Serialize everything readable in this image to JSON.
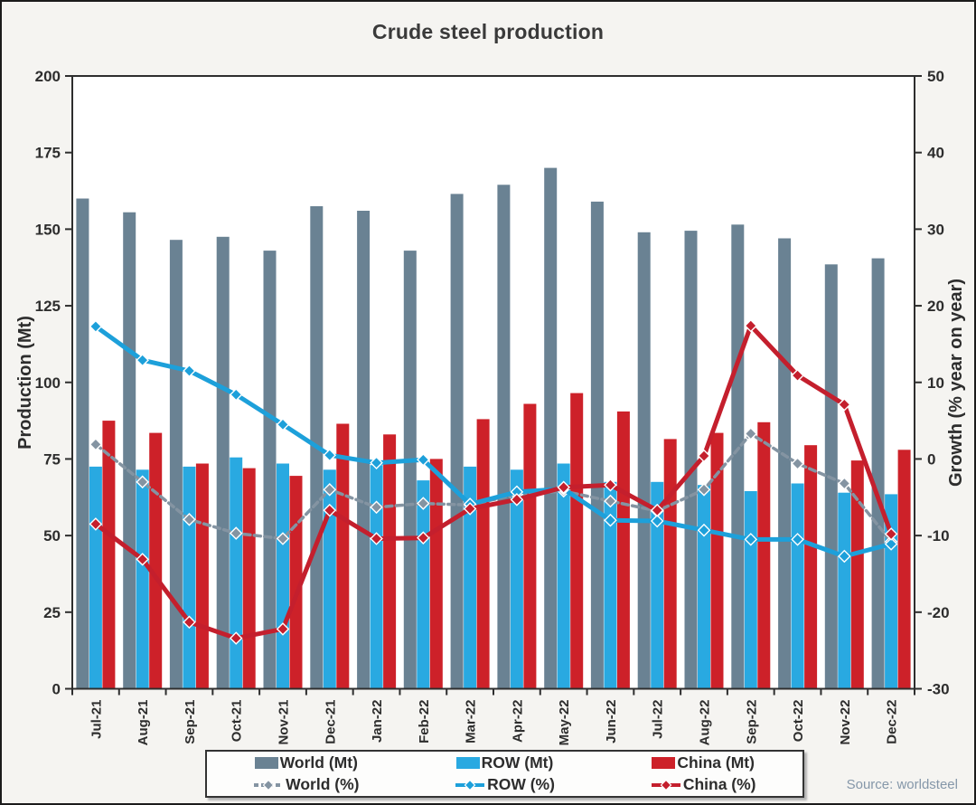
{
  "page": {
    "background": "#f5f4f1",
    "plot_background": "#ffffff",
    "border_color": "#1b1b1b"
  },
  "title": "Crude steel production",
  "source_note": "Source: worldsteel",
  "colors": {
    "world_bar": "#6a8293",
    "row_bar": "#29a9e1",
    "china_bar": "#cd2129",
    "world_line": "#8494a2",
    "row_line": "#1da0da",
    "china_line": "#c41f2d",
    "axis": "#2e2e2e",
    "text": "#2d2d2d",
    "title_text": "#3a3a3a",
    "source_text": "#8597a9"
  },
  "chart_data": {
    "type": "combo-grouped-bar-and-line",
    "title": "Crude steel production",
    "grid": false,
    "legend_position": "bottom",
    "categories": [
      "Jul-21",
      "Aug-21",
      "Sep-21",
      "Oct-21",
      "Nov-21",
      "Dec-21",
      "Jan-22",
      "Feb-22",
      "Mar-22",
      "Apr-22",
      "May-22",
      "Jun-22",
      "Jul-22",
      "Aug-22",
      "Sep-22",
      "Oct-22",
      "Nov-22",
      "Dec-22"
    ],
    "left_axis": {
      "label": "Production (Mt)",
      "min": 0,
      "max": 200,
      "ticks": [
        200,
        175,
        150,
        125,
        100,
        75,
        50,
        25,
        0
      ]
    },
    "right_axis": {
      "label": "Growth (% year on year)",
      "min": -30,
      "max": 50,
      "ticks": [
        50,
        40,
        30,
        20,
        10,
        0,
        -10,
        -20,
        -30
      ]
    },
    "series": [
      {
        "name": "World (Mt)",
        "kind": "bar",
        "axis": "left",
        "color_key": "world_bar",
        "values": [
          160,
          155.5,
          146.5,
          147.5,
          143,
          157.5,
          156,
          143,
          161.5,
          164.5,
          170,
          159,
          149,
          149.5,
          151.5,
          147,
          138.5,
          140.5
        ]
      },
      {
        "name": "ROW (Mt)",
        "kind": "bar",
        "axis": "left",
        "color_key": "row_bar",
        "values": [
          72.5,
          71.5,
          72.5,
          75.5,
          73.5,
          71.5,
          73,
          68,
          72.5,
          71.5,
          73.5,
          67.5,
          67.5,
          66.5,
          64.5,
          67,
          64,
          63.5
        ]
      },
      {
        "name": "China (Mt)",
        "kind": "bar",
        "axis": "left",
        "color_key": "china_bar",
        "values": [
          87.5,
          83.5,
          73.5,
          72,
          69.5,
          86.5,
          83,
          75,
          88,
          93,
          96.5,
          90.5,
          81.5,
          83.5,
          87,
          79.5,
          74.5,
          78
        ]
      },
      {
        "name": "World (%)",
        "kind": "line",
        "axis": "right",
        "dashed": true,
        "color_key": "world_line",
        "values": [
          1.9,
          -3.0,
          -7.9,
          -9.7,
          -10.4,
          -4.0,
          -6.3,
          -5.8,
          -6.0,
          -4.6,
          -4.2,
          -5.5,
          -6.8,
          -4.0,
          3.3,
          -0.6,
          -3.2,
          -10.8
        ]
      },
      {
        "name": "ROW (%)",
        "kind": "line",
        "axis": "right",
        "dashed": false,
        "color_key": "row_line",
        "values": [
          17.3,
          12.9,
          11.5,
          8.4,
          4.5,
          0.5,
          -0.5,
          -0.1,
          -5.9,
          -4.3,
          -3.9,
          -8.0,
          -8.1,
          -9.3,
          -10.5,
          -10.5,
          -12.7,
          -11.1
        ]
      },
      {
        "name": "China (%)",
        "kind": "line",
        "axis": "right",
        "dashed": false,
        "color_key": "china_line",
        "values": [
          -8.5,
          -13.1,
          -21.3,
          -23.4,
          -22.2,
          -6.7,
          -10.4,
          -10.3,
          -6.5,
          -5.3,
          -3.7,
          -3.4,
          -6.7,
          0.4,
          17.4,
          10.9,
          7.1,
          -9.8
        ]
      }
    ]
  },
  "legend": {
    "items": [
      {
        "label": "World (Mt)",
        "kind": "bar",
        "color_key": "world_bar"
      },
      {
        "label": "ROW (Mt)",
        "kind": "bar",
        "color_key": "row_bar"
      },
      {
        "label": "China (Mt)",
        "kind": "bar",
        "color_key": "china_bar"
      },
      {
        "label": "World (%)",
        "kind": "line",
        "dashed": true,
        "color_key": "world_line"
      },
      {
        "label": "ROW (%)",
        "kind": "line",
        "dashed": false,
        "color_key": "row_line"
      },
      {
        "label": "China (%)",
        "kind": "line",
        "dashed": false,
        "color_key": "china_line"
      }
    ]
  }
}
